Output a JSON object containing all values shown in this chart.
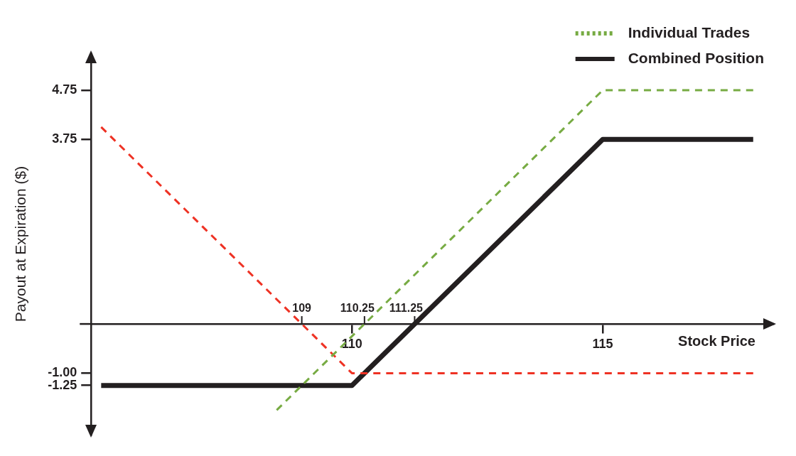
{
  "chart_data": {
    "type": "line",
    "xlabel": "Stock Price",
    "ylabel": "Payout at Expiration ($)",
    "xlim": [
      104.8,
      118.4
    ],
    "xticks": [
      110,
      115
    ],
    "ylim": [
      -2.25,
      5.5
    ],
    "yticks": [
      4.75,
      3.75,
      {
        "value": -1,
        "label": "-1.00"
      },
      -1.25
    ],
    "legend": "top right",
    "series": [
      {
        "name": "Individual Trades",
        "color": "#77ab43",
        "line_style": "dashed",
        "x": [
          108.5,
          115,
          118
        ],
        "values": [
          -1.75,
          4.75,
          4.75
        ]
      },
      {
        "color": "#ee3224",
        "line_style": "dashed",
        "x": [
          105,
          110,
          118
        ],
        "values": [
          4,
          -1,
          -1
        ]
      },
      {
        "name": "Combined Position",
        "color": "#231f20",
        "line_style": "solid",
        "x": [
          105,
          110,
          115,
          118
        ],
        "values": [
          -1.25,
          -1.25,
          3.75,
          3.75
        ]
      }
    ],
    "annotations": [
      {
        "text": "109",
        "x": 109,
        "y": 0
      },
      {
        "text": "110.25",
        "x": 110.25,
        "y": 0
      },
      {
        "text": "111.25",
        "x": 111.25,
        "y": 0
      }
    ]
  }
}
